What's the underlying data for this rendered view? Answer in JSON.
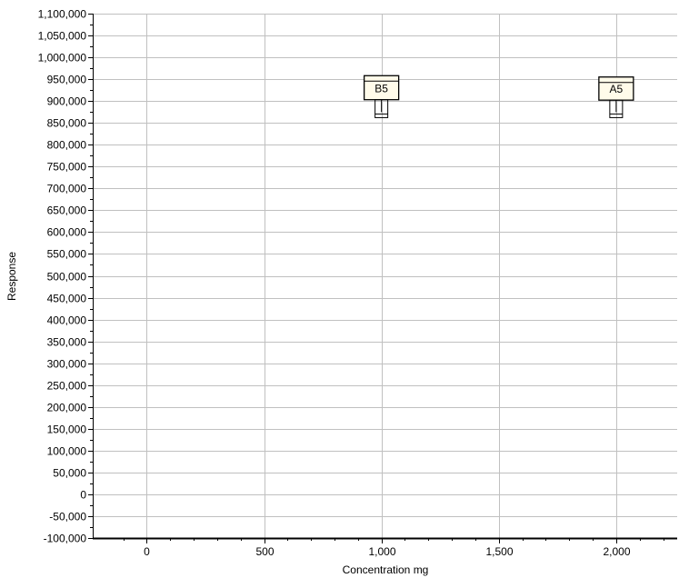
{
  "chart_data": {
    "type": "scatter",
    "title": "",
    "xlabel": "Concentration mg",
    "ylabel": "Response",
    "xlim": [
      -230,
      2260
    ],
    "ylim": [
      -100000,
      1100000
    ],
    "x_ticks": [
      0,
      500,
      1000,
      1500,
      2000
    ],
    "x_tick_labels": [
      "0",
      "500",
      "1,000",
      "1,500",
      "2,000"
    ],
    "y_ticks": [
      -100000,
      -50000,
      0,
      50000,
      100000,
      150000,
      200000,
      250000,
      300000,
      350000,
      400000,
      450000,
      500000,
      550000,
      600000,
      650000,
      700000,
      750000,
      800000,
      850000,
      900000,
      950000,
      1000000,
      1050000,
      1100000
    ],
    "y_tick_labels": [
      "-100,000",
      "-50,000",
      "0",
      "50,000",
      "100,000",
      "150,000",
      "200,000",
      "250,000",
      "300,000",
      "350,000",
      "400,000",
      "450,000",
      "500,000",
      "550,000",
      "600,000",
      "650,000",
      "700,000",
      "750,000",
      "800,000",
      "850,000",
      "900,000",
      "950,000",
      "1,000,000",
      "1,050,000",
      "1,100,000"
    ],
    "grid": true,
    "points": [
      {
        "label": "B5",
        "x": 1000,
        "y": 928000,
        "low": 862000,
        "high": 958000
      },
      {
        "label": "A5",
        "x": 2000,
        "y": 927000,
        "low": 862000,
        "high": 955000
      }
    ],
    "colors": {
      "grid": "#c0c0c0",
      "axis": "#000000",
      "box_fill": "#fffbea",
      "box_stroke": "#000000"
    }
  }
}
